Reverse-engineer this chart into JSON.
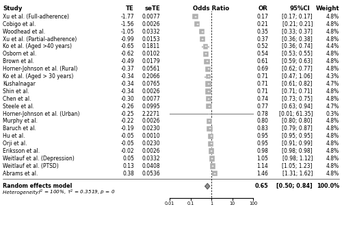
{
  "studies": [
    {
      "name": "Xu et al. (Full-adherence)",
      "TE": -1.77,
      "seTE": 0.0077,
      "OR": 0.17,
      "CI_low": 0.17,
      "CI_high": 0.17,
      "weight": 4.8
    },
    {
      "name": "Cobigo et al.",
      "TE": -1.56,
      "seTE": 0.0026,
      "OR": 0.21,
      "CI_low": 0.21,
      "CI_high": 0.21,
      "weight": 4.8
    },
    {
      "name": "Woodhead et al.",
      "TE": -1.05,
      "seTE": 0.0332,
      "OR": 0.35,
      "CI_low": 0.33,
      "CI_high": 0.37,
      "weight": 4.8
    },
    {
      "name": "Xu et al. (Partial-adherence)",
      "TE": -0.99,
      "seTE": 0.0153,
      "OR": 0.37,
      "CI_low": 0.36,
      "CI_high": 0.38,
      "weight": 4.8
    },
    {
      "name": "Ko et al. (Aged >40 years)",
      "TE": -0.65,
      "seTE": 0.1811,
      "OR": 0.52,
      "CI_low": 0.36,
      "CI_high": 0.74,
      "weight": 4.4
    },
    {
      "name": "Osborn et al.",
      "TE": -0.62,
      "seTE": 0.0102,
      "OR": 0.54,
      "CI_low": 0.53,
      "CI_high": 0.55,
      "weight": 4.8
    },
    {
      "name": "Brown et al.",
      "TE": -0.49,
      "seTE": 0.0179,
      "OR": 0.61,
      "CI_low": 0.59,
      "CI_high": 0.63,
      "weight": 4.8
    },
    {
      "name": "Horner-Johnson et al. (Rural)",
      "TE": -0.37,
      "seTE": 0.0561,
      "OR": 0.69,
      "CI_low": 0.62,
      "CI_high": 0.77,
      "weight": 4.8
    },
    {
      "name": "Ko et al. (Aged > 30 years)",
      "TE": -0.34,
      "seTE": 0.2066,
      "OR": 0.71,
      "CI_low": 0.47,
      "CI_high": 1.06,
      "weight": 4.3
    },
    {
      "name": "Kushalnagar",
      "TE": -0.34,
      "seTE": 0.0765,
      "OR": 0.71,
      "CI_low": 0.61,
      "CI_high": 0.82,
      "weight": 4.7
    },
    {
      "name": "Shin et al.",
      "TE": -0.34,
      "seTE": 0.0026,
      "OR": 0.71,
      "CI_low": 0.71,
      "CI_high": 0.71,
      "weight": 4.8
    },
    {
      "name": "Chen et al.",
      "TE": -0.3,
      "seTE": 0.0077,
      "OR": 0.74,
      "CI_low": 0.73,
      "CI_high": 0.75,
      "weight": 4.8
    },
    {
      "name": "Steele et al.",
      "TE": -0.26,
      "seTE": 0.0995,
      "OR": 0.77,
      "CI_low": 0.63,
      "CI_high": 0.94,
      "weight": 4.7
    },
    {
      "name": "Horner-Johnson et al. (Urban)",
      "TE": -0.25,
      "seTE": 2.2271,
      "OR": 0.78,
      "CI_low": 0.01,
      "CI_high": 61.35,
      "weight": 0.3
    },
    {
      "name": "Murphy et al.",
      "TE": -0.22,
      "seTE": 0.0026,
      "OR": 0.8,
      "CI_low": 0.8,
      "CI_high": 0.8,
      "weight": 4.8
    },
    {
      "name": "Baruch et al.",
      "TE": -0.19,
      "seTE": 0.023,
      "OR": 0.83,
      "CI_low": 0.79,
      "CI_high": 0.87,
      "weight": 4.8
    },
    {
      "name": "Hu et al.",
      "TE": -0.05,
      "seTE": 0.001,
      "OR": 0.95,
      "CI_low": 0.95,
      "CI_high": 0.95,
      "weight": 4.8
    },
    {
      "name": "Orji et al.",
      "TE": -0.05,
      "seTE": 0.023,
      "OR": 0.95,
      "CI_low": 0.91,
      "CI_high": 0.99,
      "weight": 4.8
    },
    {
      "name": "Eriksson et al.",
      "TE": -0.02,
      "seTE": 0.0026,
      "OR": 0.98,
      "CI_low": 0.98,
      "CI_high": 0.98,
      "weight": 4.8
    },
    {
      "name": "Weitlauf et al. (Depression)",
      "TE": 0.05,
      "seTE": 0.0332,
      "OR": 1.05,
      "CI_low": 0.98,
      "CI_high": 1.12,
      "weight": 4.8
    },
    {
      "name": "Weitlauf et al. (PTSD)",
      "TE": 0.13,
      "seTE": 0.0408,
      "OR": 1.14,
      "CI_low": 1.05,
      "CI_high": 1.23,
      "weight": 4.8
    },
    {
      "name": "Abrams et al.",
      "TE": 0.38,
      "seTE": 0.0536,
      "OR": 1.46,
      "CI_low": 1.31,
      "CI_high": 1.62,
      "weight": 4.8
    }
  ],
  "pooled": {
    "OR": 0.65,
    "CI_low": 0.5,
    "CI_high": 0.84,
    "weight": 100.0
  },
  "heterogeneity_italic": "Heterogeneity: ",
  "heterogeneity_i2": "I",
  "heterogeneity_rest": "² = 100%, τ² = 0.3519, p = 0",
  "square_color": "#b0b0b0",
  "line_color": "#707070",
  "diamond_color": "#909090",
  "bg_color": "#ffffff",
  "text_color": "#000000"
}
